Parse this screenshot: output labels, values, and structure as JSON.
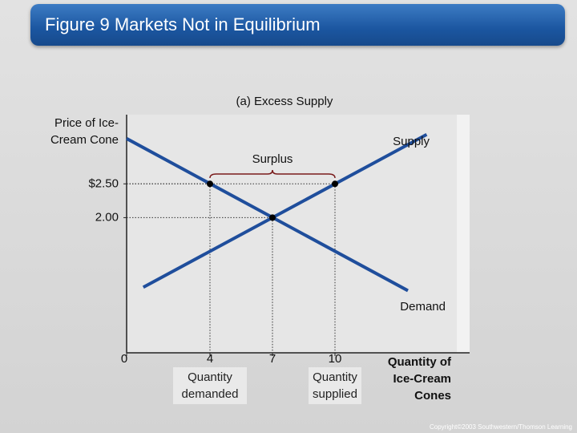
{
  "header": "Figure 9 Markets Not in Equilibrium",
  "chart_data": {
    "type": "line",
    "title": "(a) Excess Supply",
    "y_label": "Price of Ice-Cream Cone",
    "x_label": "Quantity of Ice-Cream Cones",
    "xlim": [
      0,
      16
    ],
    "ylim": [
      0,
      3.5
    ],
    "xticks": [
      0,
      4,
      7,
      10
    ],
    "yticks": [
      {
        "value": 2.5,
        "label": "$2.50"
      },
      {
        "value": 2,
        "label": "2.00"
      }
    ],
    "series": [
      {
        "name": "Supply",
        "color": "#1f4e9c",
        "x": [
          0.8,
          14.4
        ],
        "values": [
          0.97,
          3.23
        ]
      },
      {
        "name": "Demand",
        "color": "#1f4e9c",
        "x": [
          0,
          13.5
        ],
        "values": [
          3.17,
          0.92
        ]
      }
    ],
    "points": [
      {
        "x": 4,
        "y": 2.5
      },
      {
        "x": 7,
        "y": 2
      },
      {
        "x": 10,
        "y": 2.5
      }
    ],
    "annotations": {
      "surplus": "Surplus",
      "quantity_demanded": "Quantity demanded",
      "quantity_supplied": "Quantity supplied"
    }
  },
  "copyright": "Copyright©2003 Southwestern/Thomson Learning"
}
